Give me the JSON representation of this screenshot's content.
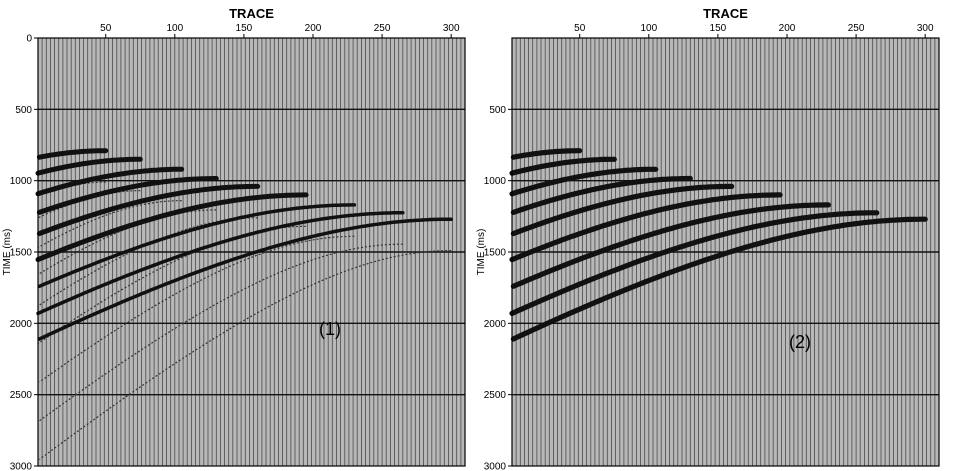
{
  "panels": [
    {
      "id": "panel-1",
      "x_title": "TRACE",
      "y_title": "TIME (ms)",
      "x_ticks": [
        "50",
        "100",
        "150",
        "200",
        "250",
        "300"
      ],
      "y_ticks": [
        "0",
        "500",
        "1000",
        "1500",
        "2000",
        "2500",
        "3000"
      ],
      "label": "(1)"
    },
    {
      "id": "panel-2",
      "x_title": "TRACE",
      "y_title": "TIME (ms)",
      "x_ticks": [
        "50",
        "100",
        "150",
        "200",
        "250",
        "300"
      ],
      "y_ticks": [
        "500",
        "1000",
        "1500",
        "2000",
        "2500",
        "3000"
      ],
      "label": "(2)"
    }
  ],
  "x_range": [
    1,
    310
  ],
  "y_range": [
    0,
    3000
  ],
  "event_apexes": [
    {
      "trace": 50,
      "time": 790
    },
    {
      "trace": 75,
      "time": 850
    },
    {
      "trace": 105,
      "time": 920
    },
    {
      "trace": 130,
      "time": 985
    },
    {
      "trace": 160,
      "time": 1040
    },
    {
      "trace": 195,
      "time": 1100
    },
    {
      "trace": 230,
      "time": 1170
    },
    {
      "trace": 265,
      "time": 1225
    },
    {
      "trace": 300,
      "time": 1270
    }
  ],
  "colors": {
    "grid": "#4a4a4a",
    "background": "#b8b8b8",
    "event": "#111111"
  }
}
